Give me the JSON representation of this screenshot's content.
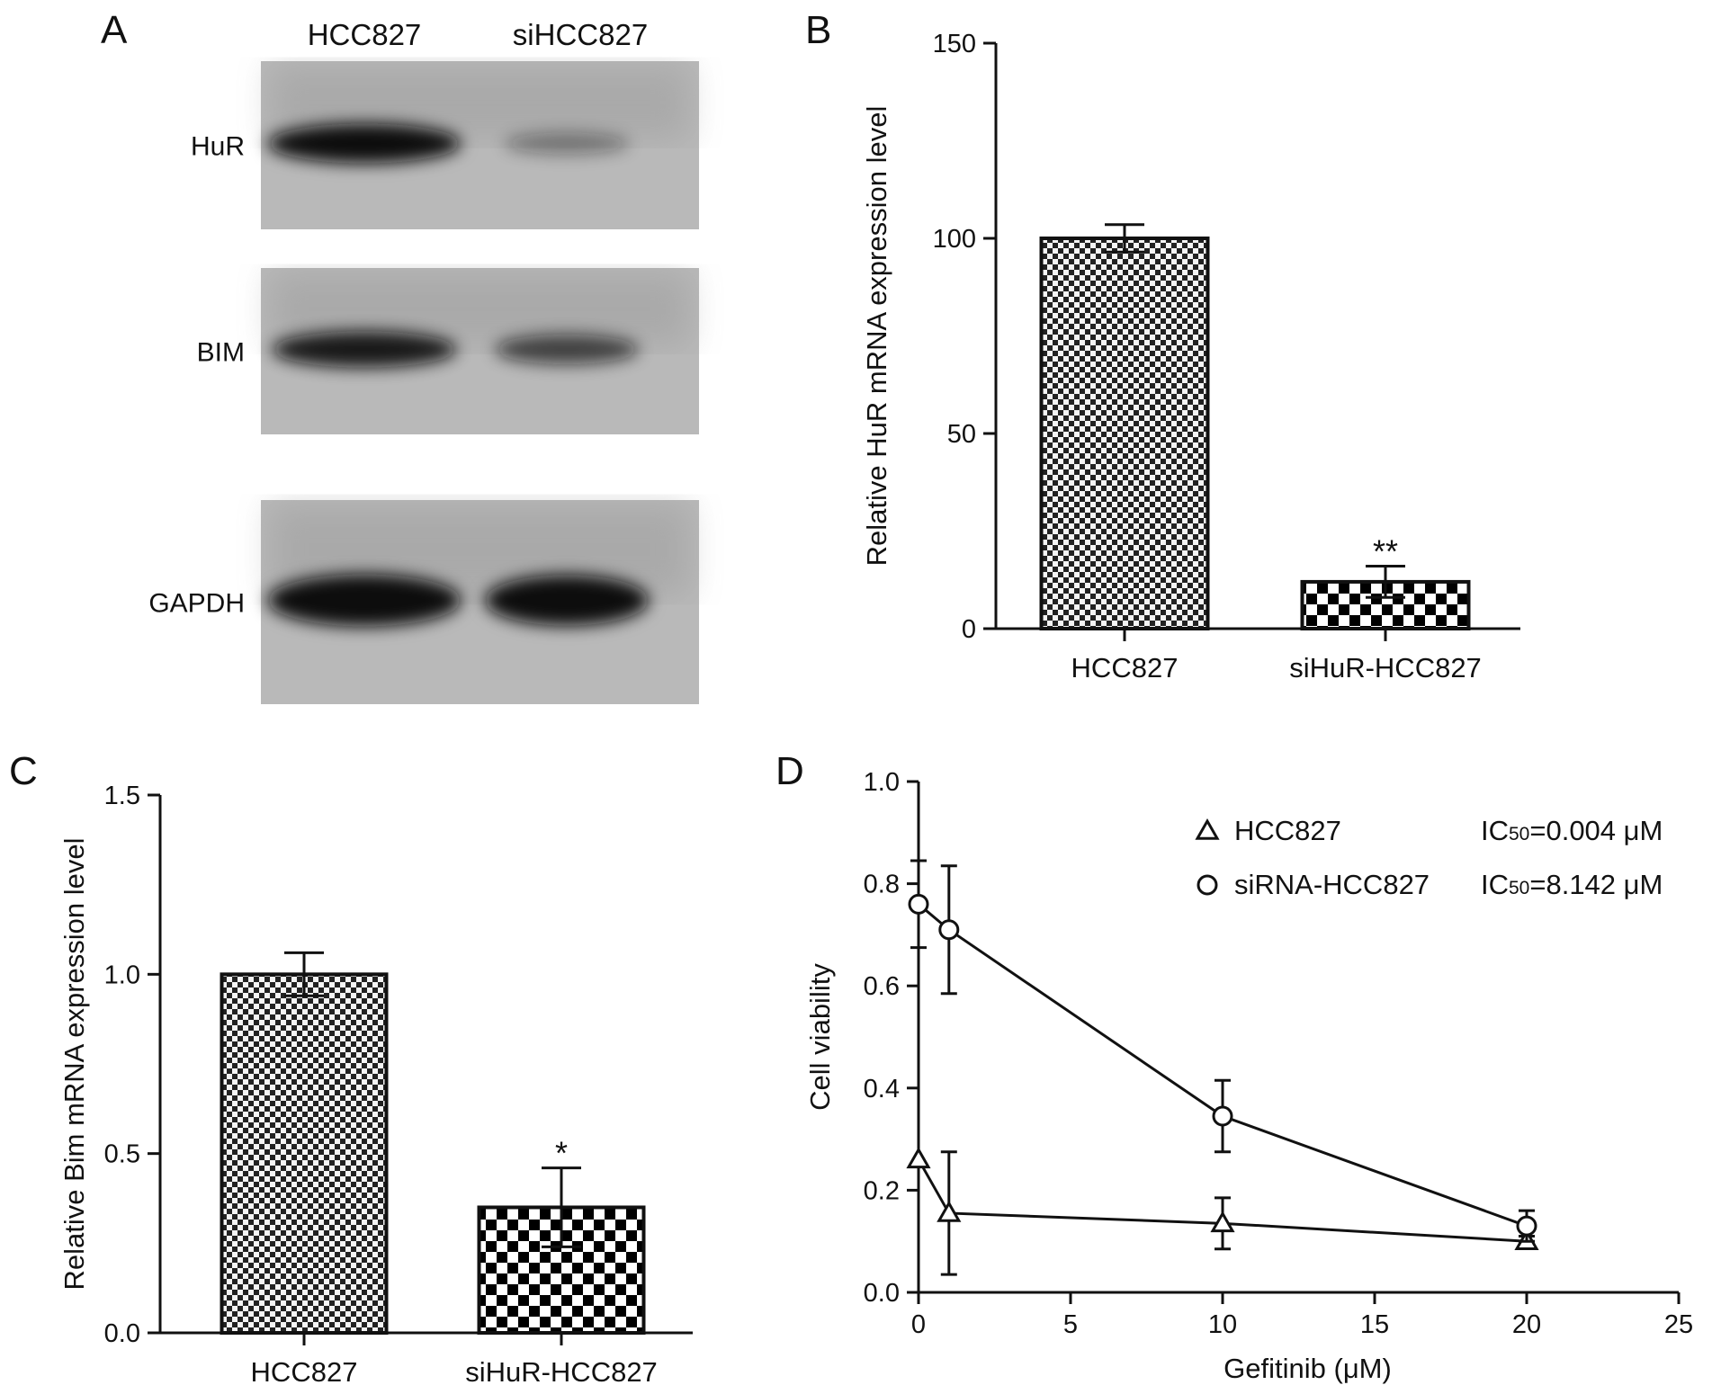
{
  "panelA": {
    "letter": "A",
    "lanes": [
      "HCC827",
      "siHCC827"
    ],
    "rows": [
      {
        "label": "HuR",
        "bands": [
          1.0,
          0.18
        ]
      },
      {
        "label": "BIM",
        "bands": [
          0.85,
          0.55
        ]
      },
      {
        "label": "GAPDH",
        "bands": [
          1.0,
          0.95
        ]
      }
    ]
  },
  "colors": {
    "ink": "#111111",
    "blot_bg": "#b9b9b9",
    "band": "#0d0d0d"
  },
  "chart_data": [
    {
      "id": "B",
      "letter": "B",
      "type": "bar",
      "categories": [
        "HCC827",
        "siHuR-HCC827"
      ],
      "values": [
        100,
        12
      ],
      "errors": [
        3.5,
        4
      ],
      "significance": [
        "",
        "**"
      ],
      "patterns": [
        "fine-check",
        "coarse-check"
      ],
      "ylabel": "Relative HuR mRNA expression level",
      "ylim": [
        0,
        150
      ],
      "yticks": [
        0,
        50,
        100,
        150
      ],
      "ytick_labels": [
        "0",
        "50",
        "100",
        "150"
      ]
    },
    {
      "id": "C",
      "letter": "C",
      "type": "bar",
      "categories": [
        "HCC827",
        "siHuR-HCC827"
      ],
      "values": [
        1.0,
        0.35
      ],
      "errors": [
        0.06,
        0.11
      ],
      "significance": [
        "",
        "*"
      ],
      "patterns": [
        "fine-check",
        "coarse-check"
      ],
      "ylabel": "Relative Bim mRNA expression level",
      "ylim": [
        0,
        1.5
      ],
      "yticks": [
        0,
        0.5,
        1.0,
        1.5
      ],
      "ytick_labels": [
        "0.0",
        "0.5",
        "1.0",
        "1.5"
      ]
    },
    {
      "id": "D",
      "letter": "D",
      "type": "line",
      "xlabel": "Gefitinib (μM)",
      "ylabel": "Cell viability",
      "xlim": [
        0,
        25
      ],
      "ylim": [
        0,
        1.0
      ],
      "xticks": [
        0,
        5,
        10,
        15,
        20,
        25
      ],
      "xtick_labels": [
        "0",
        "5",
        "10",
        "15",
        "20",
        "25"
      ],
      "yticks": [
        0,
        0.2,
        0.4,
        0.6,
        0.8,
        1.0
      ],
      "ytick_labels": [
        "0.0",
        "0.2",
        "0.4",
        "0.6",
        "0.8",
        "1.0"
      ],
      "legend_position": "top-right",
      "series": [
        {
          "name": "HCC827",
          "ic50": "IC50=0.004 μM",
          "marker": "triangle",
          "x": [
            0,
            1,
            10,
            20
          ],
          "y": [
            0.26,
            0.155,
            0.135,
            0.1
          ],
          "err": [
            0,
            0.12,
            0.05,
            0.01
          ]
        },
        {
          "name": "siRNA-HCC827",
          "ic50": "IC50=8.142 μM",
          "marker": "circle",
          "x": [
            0,
            1,
            10,
            20
          ],
          "y": [
            0.76,
            0.71,
            0.345,
            0.13
          ],
          "err": [
            0.085,
            0.125,
            0.07,
            0.03
          ]
        }
      ]
    }
  ]
}
